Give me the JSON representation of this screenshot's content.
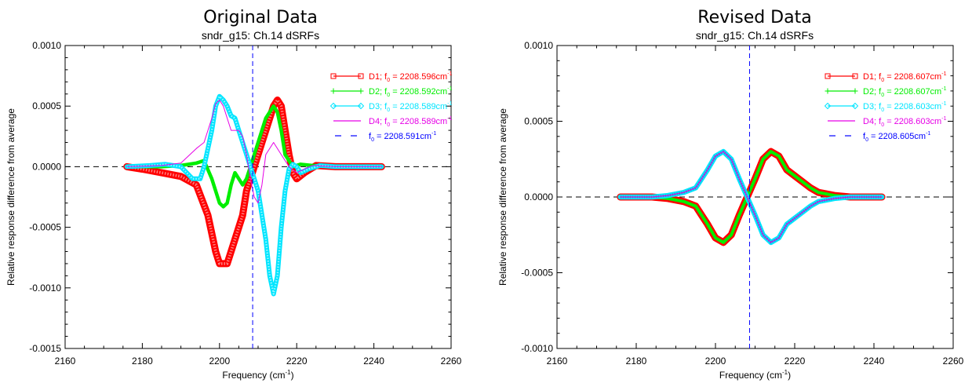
{
  "chart_data": [
    {
      "type": "line",
      "title": "Original Data",
      "subtitle": "sndr_g15: Ch.14 dSRFs",
      "xlabel_base": "Frequency (cm",
      "xlabel_sup": "-1",
      "xlabel_end": ")",
      "ylabel": "Relative response difference from average",
      "xlim": [
        2160,
        2260
      ],
      "ylim": [
        -0.0015,
        0.001
      ],
      "xticks": [
        2160,
        2180,
        2200,
        2220,
        2240,
        2260
      ],
      "yticks": [
        -0.0015,
        -0.001,
        -0.0005,
        0.0,
        0.0005,
        0.001
      ],
      "ytick_labels": [
        "-0.0015",
        "-0.0010",
        "-0.0005",
        "0.0000",
        "0.0005",
        "0.0010"
      ],
      "zero_line": 0.0,
      "f0_line": 2208.591,
      "legend_position": "top-right",
      "series": [
        {
          "name": "D1; f0 = 2208.596cm-1",
          "legend_prefix": "D1; f",
          "legend_value": " = 2208.596cm",
          "color": "#ff0000",
          "marker": "square",
          "x": [
            2176,
            2180,
            2185,
            2190,
            2194,
            2197,
            2199,
            2200,
            2202,
            2204,
            2206,
            2207,
            2209,
            2211,
            2213,
            2214,
            2215,
            2216,
            2217,
            2218,
            2219,
            2220,
            2222,
            2225,
            2230,
            2235,
            2242
          ],
          "y": [
            0.0,
            -2e-05,
            -5e-05,
            -8e-05,
            -0.00015,
            -0.0004,
            -0.0007,
            -0.0008,
            -0.0008,
            -0.0006,
            -0.0004,
            -0.0002,
            0.0,
            0.0002,
            0.0004,
            0.0005,
            0.00055,
            0.0005,
            0.0003,
            0.0001,
            -5e-05,
            -0.0001,
            -5e-05,
            1e-05,
            0.0,
            0.0,
            0.0
          ]
        },
        {
          "name": "D2; f0 = 2208.592cm-1",
          "legend_prefix": "D2; f",
          "legend_value": " = 2208.592cm",
          "color": "#00ee00",
          "marker": "plus",
          "x": [
            2176,
            2185,
            2190,
            2194,
            2196,
            2198,
            2200,
            2201,
            2202,
            2203,
            2204,
            2205,
            2206,
            2207,
            2208,
            2210,
            2212,
            2214,
            2215,
            2216,
            2217,
            2218,
            2219,
            2221,
            2224,
            2230,
            2242
          ],
          "y": [
            0.0,
            0.0,
            1e-05,
            3e-05,
            5e-05,
            -0.0001,
            -0.0003,
            -0.00033,
            -0.0003,
            -0.00015,
            -5e-05,
            -0.0001,
            -0.00015,
            -0.0001,
            0.0,
            0.0002,
            0.0004,
            0.0005,
            0.00045,
            0.0003,
            0.0001,
            5e-05,
            0.0,
            2e-05,
            1e-05,
            0.0,
            0.0
          ]
        },
        {
          "name": "D3; f0 = 2208.589cm-1",
          "legend_prefix": "D3; f",
          "legend_value": " = 2208.589cm",
          "color": "#00e5ff",
          "marker": "diamond",
          "x": [
            2176,
            2182,
            2186,
            2190,
            2193,
            2195,
            2196,
            2198,
            2199,
            2200,
            2201,
            2202,
            2203,
            2204,
            2205,
            2206,
            2208,
            2210,
            2212,
            2213,
            2214,
            2215,
            2216,
            2217,
            2218,
            2219,
            2220,
            2221,
            2223,
            2226,
            2230,
            2242
          ],
          "y": [
            0.0,
            1e-05,
            2e-05,
            0.0,
            -0.0001,
            -0.0001,
            0.0,
            0.0003,
            0.0005,
            0.00058,
            0.00055,
            0.0005,
            0.00042,
            0.0004,
            0.0003,
            0.0002,
            0.0,
            -0.0002,
            -0.0006,
            -0.0009,
            -0.00105,
            -0.0009,
            -0.0005,
            -0.0002,
            -2e-05,
            2e-05,
            0.0,
            -5e-05,
            -2e-05,
            1e-05,
            0.0,
            0.0
          ]
        },
        {
          "name": "D4; f0 = 2208.589cm-1",
          "legend_prefix": "D4; f",
          "legend_value": " = 2208.589cm",
          "color": "#e600e6",
          "marker": "none",
          "x": [
            2176,
            2185,
            2190,
            2194,
            2196,
            2198,
            2199,
            2200,
            2201,
            2202,
            2203,
            2205,
            2206,
            2207,
            2208,
            2209,
            2210,
            2211,
            2212,
            2214,
            2216,
            2218,
            2220,
            2224,
            2230,
            2242
          ],
          "y": [
            0.0,
            1e-05,
            3e-05,
            0.00015,
            0.0002,
            0.0004,
            0.00052,
            0.00055,
            0.0005,
            0.0004,
            0.0003,
            0.0003,
            0.00025,
            0.0001,
            -0.0001,
            -0.00025,
            -0.0003,
            -0.00015,
            0.0001,
            0.0002,
            0.0001,
            0.0,
            -5e-05,
            1e-05,
            0.0,
            0.0
          ]
        },
        {
          "name": "f0 = 2208.591cm-1",
          "legend_prefix": "f",
          "legend_value": " = 2208.591cm",
          "color": "#0000ff",
          "marker": "dash"
        }
      ]
    },
    {
      "type": "line",
      "title": "Revised Data",
      "subtitle": "sndr_g15: Ch.14 dSRFs",
      "xlabel_base": "Frequency (cm",
      "xlabel_sup": "-1",
      "xlabel_end": ")",
      "ylabel": "Relative response difference from average",
      "xlim": [
        2160,
        2260
      ],
      "ylim": [
        -0.001,
        0.001
      ],
      "xticks": [
        2160,
        2180,
        2200,
        2220,
        2240,
        2260
      ],
      "yticks": [
        -0.001,
        -0.0005,
        0.0,
        0.0005,
        0.001
      ],
      "ytick_labels": [
        "-0.0010",
        "-0.0005",
        "0.0000",
        "0.0005",
        "0.0010"
      ],
      "zero_line": 0.0,
      "f0_line": 2208.605,
      "legend_position": "top-right",
      "series": [
        {
          "name": "D1; f0 = 2208.607cm-1",
          "legend_prefix": "D1; f",
          "legend_value": " = 2208.607cm",
          "color": "#ff0000",
          "marker": "square",
          "x": [
            2176,
            2184,
            2188,
            2192,
            2195,
            2198,
            2200,
            2202,
            2204,
            2206,
            2208,
            2210,
            2212,
            2214,
            2216,
            2218,
            2220,
            2222,
            2224,
            2226,
            2228,
            2230,
            2234,
            2242
          ],
          "y": [
            0.0,
            0.0,
            -1e-05,
            -3e-05,
            -6e-05,
            -0.00018,
            -0.00027,
            -0.0003,
            -0.00025,
            -0.00012,
            0.0,
            0.00012,
            0.00025,
            0.0003,
            0.00027,
            0.00018,
            0.00014,
            0.0001,
            6e-05,
            3e-05,
            2e-05,
            1e-05,
            0.0,
            0.0
          ]
        },
        {
          "name": "D2; f0 = 2208.607cm-1",
          "legend_prefix": "D2; f",
          "legend_value": " = 2208.607cm",
          "color": "#00ee00",
          "marker": "plus",
          "x": [
            2176,
            2184,
            2188,
            2192,
            2195,
            2198,
            2200,
            2202,
            2204,
            2206,
            2208,
            2210,
            2212,
            2214,
            2216,
            2218,
            2220,
            2222,
            2224,
            2226,
            2228,
            2230,
            2234,
            2242
          ],
          "y": [
            0.0,
            0.0,
            -1e-05,
            -3e-05,
            -6e-05,
            -0.00018,
            -0.00027,
            -0.0003,
            -0.00025,
            -0.00012,
            0.0,
            0.00012,
            0.00025,
            0.0003,
            0.00027,
            0.00018,
            0.00014,
            0.0001,
            6e-05,
            3e-05,
            2e-05,
            1e-05,
            0.0,
            0.0
          ]
        },
        {
          "name": "D3; f0 = 2208.603cm-1",
          "legend_prefix": "D3; f",
          "legend_value": " = 2208.603cm",
          "color": "#00e5ff",
          "marker": "diamond",
          "x": [
            2176,
            2184,
            2188,
            2192,
            2195,
            2198,
            2200,
            2202,
            2204,
            2206,
            2208,
            2210,
            2212,
            2214,
            2216,
            2218,
            2220,
            2222,
            2224,
            2226,
            2228,
            2230,
            2234,
            2242
          ],
          "y": [
            0.0,
            0.0,
            1e-05,
            3e-05,
            6e-05,
            0.00018,
            0.00027,
            0.0003,
            0.00025,
            0.00012,
            0.0,
            -0.00012,
            -0.00025,
            -0.0003,
            -0.00027,
            -0.00018,
            -0.00014,
            -0.0001,
            -6e-05,
            -3e-05,
            -2e-05,
            -1e-05,
            0.0,
            0.0
          ]
        },
        {
          "name": "D4; f0 = 2208.603cm-1",
          "legend_prefix": "D4; f",
          "legend_value": " = 2208.603cm",
          "color": "#e600e6",
          "marker": "none",
          "x": [
            2176,
            2184,
            2188,
            2192,
            2195,
            2198,
            2200,
            2202,
            2204,
            2206,
            2208,
            2210,
            2212,
            2214,
            2216,
            2218,
            2220,
            2222,
            2224,
            2226,
            2228,
            2230,
            2234,
            2242
          ],
          "y": [
            0.0,
            0.0,
            1e-05,
            3e-05,
            6e-05,
            0.00018,
            0.00027,
            0.0003,
            0.00025,
            0.00012,
            0.0,
            -0.00012,
            -0.00025,
            -0.0003,
            -0.00027,
            -0.00018,
            -0.00014,
            -0.0001,
            -6e-05,
            -3e-05,
            -2e-05,
            -1e-05,
            0.0,
            0.0
          ]
        },
        {
          "name": "f0 = 2208.605cm-1",
          "legend_prefix": "f",
          "legend_value": " = 2208.605cm",
          "color": "#0000ff",
          "marker": "dash"
        }
      ]
    }
  ]
}
